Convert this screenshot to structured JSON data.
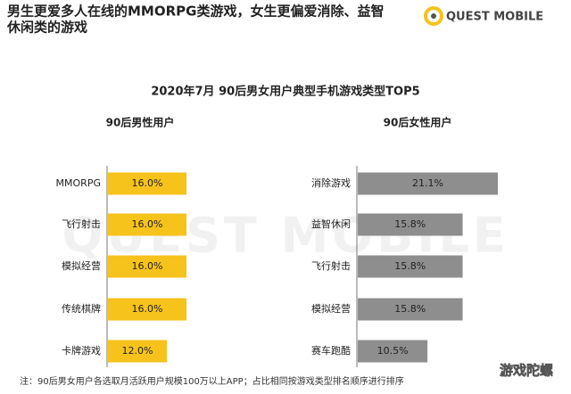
{
  "header": {
    "title_lines": [
      "男生更爱多人在线的MMORPG类游戏，女生更偏爱消除、益智",
      "休闲类的游戏"
    ]
  },
  "logo": "QUEST MOBILE",
  "background_watermark": "QUEST MOBILE",
  "title": "2020年7月 90后男女用户典型手机游戏类型TOP5",
  "chart_data": [
    {
      "type": "bar",
      "orientation": "horizontal",
      "title": "90后男性用户",
      "categories": [
        "MMORPG",
        "飞行射击",
        "模拟经营",
        "传统棋牌",
        "卡牌游戏"
      ],
      "values": [
        16.0,
        16.0,
        16.0,
        16.0,
        12.0
      ],
      "value_labels": [
        "16.0%",
        "16.0%",
        "16.0%",
        "16.0%",
        "12.0%"
      ],
      "color": "#f6c21c"
    },
    {
      "type": "bar",
      "orientation": "horizontal",
      "title": "90后女性用户",
      "categories": [
        "消除游戏",
        "益智休闲",
        "飞行射击",
        "模拟经营",
        "赛车跑酷"
      ],
      "values": [
        21.1,
        15.8,
        15.8,
        15.8,
        10.5
      ],
      "value_labels": [
        "21.1%",
        "15.8%",
        "15.8%",
        "15.8%",
        "10.5%"
      ],
      "color": "#8e8e8e"
    }
  ],
  "footnote": "注：90后男女用户各选取月活跃用户规模100万以上APP；占比相同按游戏类型排名顺序进行排序",
  "watermark": "游戏陀螺"
}
